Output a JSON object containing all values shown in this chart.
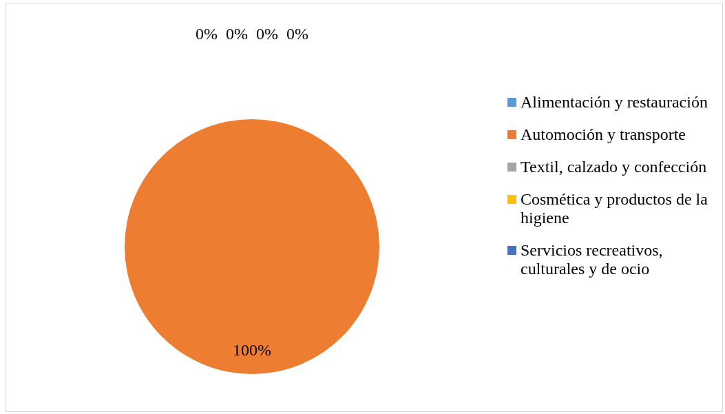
{
  "chart_data": {
    "type": "pie",
    "categories": [
      "Alimentación y restauración",
      "Automoción y transporte",
      "Textil, calzado y confección",
      "Cosmética y productos de la higiene",
      "Servicios recreativos, culturales y de ocio"
    ],
    "values": [
      0,
      100,
      0,
      0,
      0
    ],
    "colors": [
      "#5b9bd5",
      "#ed7d31",
      "#a5a5a5",
      "#ffc000",
      "#4472c4"
    ],
    "value_labels": [
      "0%",
      "100%",
      "0%",
      "0%",
      "0%"
    ],
    "legend": "right"
  }
}
